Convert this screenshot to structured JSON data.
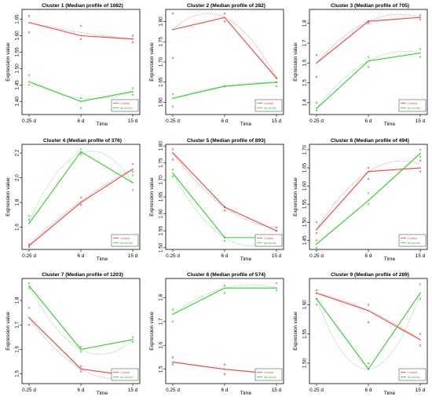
{
  "figure": {
    "shared_x_categories": [
      "0.25 d",
      "6 d",
      "15 d"
    ],
    "x_label": "Time",
    "y_label": "Expression value",
    "legend_entries": [
      "Control",
      "ab knHdc"
    ],
    "colors": {
      "Control": "#ff3b3b",
      "ab knHdc": "#2bd12b",
      "frame": "#000000"
    }
  },
  "chart_data": [
    {
      "type": "line",
      "title": "Cluster 1 (Median profile of 1082)",
      "categories": [
        "0.25 d",
        "6 d",
        "15 d"
      ],
      "xlabel": "Time",
      "ylabel": "Expression value",
      "ylim": [
        1.36,
        1.68
      ],
      "yticks": [
        "1.40",
        "1.45",
        "1.50",
        "1.55",
        "1.60",
        "1.65"
      ],
      "series": [
        {
          "name": "Control",
          "values": [
            1.64,
            1.6,
            1.59
          ],
          "points": [
            [
              1.66,
              1.63,
              1.6
            ],
            [
              1.61,
              1.59,
              1.58
            ]
          ],
          "fit": [
            1.64,
            1.61,
            1.59
          ]
        },
        {
          "name": "ab knHdc",
          "values": [
            1.46,
            1.4,
            1.43
          ],
          "points": [
            [
              1.48,
              1.41,
              1.44
            ],
            [
              1.45,
              1.38,
              1.42
            ]
          ],
          "fit": [
            1.46,
            1.41,
            1.43
          ]
        }
      ],
      "legend": "bottom-right"
    },
    {
      "type": "line",
      "title": "Cluster 2 (Median profile of 282)",
      "categories": [
        "0.25 d",
        "6 d",
        "15 d"
      ],
      "xlabel": "Time",
      "ylabel": "Expression value",
      "ylim": [
        1.57,
        1.83
      ],
      "yticks": [
        "1.60",
        "1.65",
        "1.70",
        "1.75",
        "1.80"
      ],
      "series": [
        {
          "name": "Control",
          "values": [
            1.78,
            1.81,
            1.66
          ],
          "points": [
            [
              1.82,
              1.82,
              1.66
            ],
            [
              1.71,
              1.8,
              1.65
            ]
          ],
          "fit": [
            1.78,
            1.81,
            1.66
          ]
        },
        {
          "name": "ab knHdc",
          "values": [
            1.61,
            1.64,
            1.65
          ],
          "points": [
            [
              1.62,
              1.64,
              1.66
            ],
            [
              1.59,
              1.64,
              1.64
            ]
          ],
          "fit": [
            1.61,
            1.64,
            1.65
          ]
        }
      ],
      "legend": "bottom-right"
    },
    {
      "type": "line",
      "title": "Cluster 3 (Median profile of 705)",
      "categories": [
        "0.25 d",
        "6 d",
        "15 d"
      ],
      "xlabel": "Time",
      "ylabel": "Expression value",
      "ylim": [
        1.34,
        1.87
      ],
      "yticks": [
        "1.4",
        "1.5",
        "1.6",
        "1.7",
        "1.8"
      ],
      "series": [
        {
          "name": "Control",
          "values": [
            1.6,
            1.81,
            1.83
          ],
          "points": [
            [
              1.64,
              1.81,
              1.84
            ],
            [
              1.53,
              1.8,
              1.82
            ]
          ],
          "fit": [
            1.6,
            1.81,
            1.83
          ]
        },
        {
          "name": "ab knHdc",
          "values": [
            1.37,
            1.61,
            1.65
          ],
          "points": [
            [
              1.4,
              1.63,
              1.67
            ],
            [
              1.36,
              1.58,
              1.63
            ]
          ],
          "fit": [
            1.37,
            1.61,
            1.65
          ]
        }
      ],
      "legend": "bottom-right"
    },
    {
      "type": "line",
      "title": "Cluster 4 (Median profile of 376)",
      "categories": [
        "0.25 d",
        "6 d",
        "15 d"
      ],
      "xlabel": "Time",
      "ylabel": "Expression value",
      "ylim": [
        1.42,
        2.27
      ],
      "yticks": [
        "1.6",
        "1.8",
        "2.0",
        "2.2"
      ],
      "series": [
        {
          "name": "Control",
          "values": [
            1.45,
            1.8,
            2.07
          ],
          "points": [
            [
              1.46,
              1.84,
              2.11
            ],
            [
              1.44,
              1.78,
              2.05
            ]
          ],
          "fit": [
            1.46,
            1.81,
            2.07
          ]
        },
        {
          "name": "ab knHdc",
          "values": [
            1.63,
            2.21,
            1.96
          ],
          "points": [
            [
              1.69,
              2.23,
              2.02
            ],
            [
              1.66,
              2.19,
              1.9
            ]
          ],
          "fit": [
            1.64,
            2.2,
            1.96
          ]
        }
      ],
      "legend": "bottom-right"
    },
    {
      "type": "line",
      "title": "Cluster 5 (Median profile of 893)",
      "categories": [
        "0.25 d",
        "6 d",
        "15 d"
      ],
      "xlabel": "Time",
      "ylabel": "Expression value",
      "ylim": [
        1.495,
        1.805
      ],
      "yticks": [
        "1.50",
        "1.55",
        "1.60",
        "1.65",
        "1.70",
        "1.75",
        "1.80"
      ],
      "series": [
        {
          "name": "Control",
          "values": [
            1.78,
            1.62,
            1.55
          ],
          "points": [
            [
              1.79,
              1.62,
              1.56
            ],
            [
              1.76,
              1.61,
              1.55
            ]
          ],
          "fit": [
            1.78,
            1.62,
            1.56
          ]
        },
        {
          "name": "ab knHdc",
          "values": [
            1.72,
            1.53,
            1.53
          ],
          "points": [
            [
              1.73,
              1.53,
              1.53
            ],
            [
              1.71,
              1.52,
              1.52
            ]
          ],
          "fit": [
            1.72,
            1.53,
            1.53
          ]
        }
      ],
      "legend": "bottom-right"
    },
    {
      "type": "line",
      "title": "Cluster 6 (Median profile of 494)",
      "categories": [
        "0.25 d",
        "6 d",
        "15 d"
      ],
      "xlabel": "Time",
      "ylabel": "Expression value",
      "ylim": [
        1.425,
        1.715
      ],
      "yticks": [
        "1.45",
        "1.50",
        "1.55",
        "1.60",
        "1.65",
        "1.70"
      ],
      "series": [
        {
          "name": "Control",
          "values": [
            1.48,
            1.64,
            1.65
          ],
          "points": [
            [
              1.5,
              1.65,
              1.67
            ],
            [
              1.47,
              1.62,
              1.64
            ]
          ],
          "fit": [
            1.48,
            1.64,
            1.66
          ]
        },
        {
          "name": "ab knHdc",
          "values": [
            1.44,
            1.56,
            1.69
          ],
          "points": [
            [
              1.45,
              1.58,
              1.7
            ],
            [
              1.43,
              1.55,
              1.68
            ]
          ],
          "fit": [
            1.44,
            1.56,
            1.69
          ]
        }
      ],
      "legend": "bottom-right"
    },
    {
      "type": "line",
      "title": "Cluster 7 (Median profile of 1203)",
      "categories": [
        "0.25 d",
        "6 d",
        "15 d"
      ],
      "xlabel": "Time",
      "ylabel": "Expression value",
      "ylim": [
        1.46,
        1.89
      ],
      "yticks": [
        "1.5",
        "1.6",
        "1.7",
        "1.8"
      ],
      "series": [
        {
          "name": "Control",
          "values": [
            1.73,
            1.52,
            1.49
          ],
          "points": [
            [
              1.77,
              1.53,
              1.49
            ],
            [
              1.7,
              1.51,
              1.48
            ]
          ],
          "fit": [
            1.73,
            1.52,
            1.49
          ]
        },
        {
          "name": "ab knHdc",
          "values": [
            1.86,
            1.6,
            1.64
          ],
          "points": [
            [
              1.87,
              1.61,
              1.65
            ],
            [
              1.85,
              1.59,
              1.63
            ]
          ],
          "fit": [
            1.86,
            1.6,
            1.64
          ]
        }
      ],
      "legend": "bottom-right"
    },
    {
      "type": "line",
      "title": "Cluster 8 (Median profile of 574)",
      "categories": [
        "0.25 d",
        "6 d",
        "15 d"
      ],
      "xlabel": "Time",
      "ylabel": "Expression value",
      "ylim": [
        1.44,
        1.88
      ],
      "yticks": [
        "1.5",
        "1.6",
        "1.7",
        "1.8"
      ],
      "series": [
        {
          "name": "Control",
          "values": [
            1.53,
            1.5,
            1.48
          ],
          "points": [
            [
              1.55,
              1.52,
              1.49
            ],
            [
              1.52,
              1.48,
              1.47
            ]
          ],
          "fit": [
            1.53,
            1.5,
            1.48
          ]
        },
        {
          "name": "ab knHdc",
          "values": [
            1.73,
            1.84,
            1.84
          ],
          "points": [
            [
              1.75,
              1.85,
              1.86
            ],
            [
              1.7,
              1.82,
              1.83
            ]
          ],
          "fit": [
            1.73,
            1.84,
            1.84
          ]
        }
      ],
      "legend": "bottom-right"
    },
    {
      "type": "line",
      "title": "Cluster 9 (Median profile of 289)",
      "categories": [
        "0.25 d",
        "6 d",
        "15 d"
      ],
      "xlabel": "Time",
      "ylabel": "Expression value",
      "ylim": [
        1.465,
        1.645
      ],
      "yticks": [
        "1.50",
        "1.55",
        "1.60"
      ],
      "series": [
        {
          "name": "Control",
          "values": [
            1.62,
            1.59,
            1.54
          ],
          "points": [
            [
              1.625,
              1.6,
              1.55
            ],
            [
              1.61,
              1.57,
              1.53
            ]
          ],
          "fit": [
            1.62,
            1.59,
            1.54
          ]
        },
        {
          "name": "ab knHdc",
          "values": [
            1.61,
            1.49,
            1.62
          ],
          "points": [
            [
              1.62,
              1.5,
              1.635
            ],
            [
              1.6,
              1.49,
              1.61
            ]
          ],
          "fit": [
            1.61,
            1.49,
            1.62
          ]
        }
      ],
      "legend": "bottom-right"
    }
  ]
}
